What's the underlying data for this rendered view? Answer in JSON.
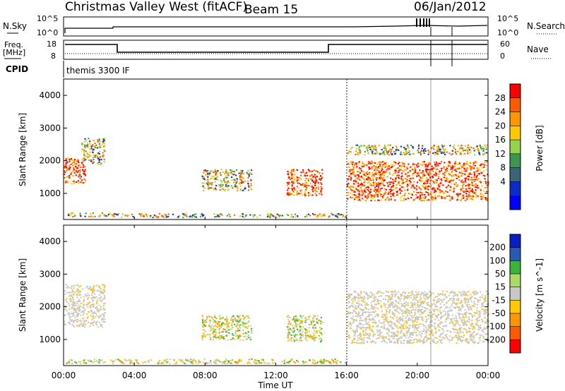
{
  "header": {
    "station": "Christmas Valley West (fitACF)",
    "beam": "Beam 15",
    "date": "06/Jan/2012"
  },
  "top_panels": {
    "nsky_label": "N.Sky",
    "nsearch_label": "N.Search",
    "left_tick_top": "10^5",
    "left_tick_bottom": "10^0",
    "right_tick_top": "10^5",
    "right_tick_bottom": "10^0",
    "freq_label": "Freq.",
    "freq_unit": "[MHz]",
    "freq_ticks": [
      "18",
      "8"
    ],
    "nave_label": "Nave",
    "nave_ticks": [
      "60",
      "0"
    ],
    "cpid_label": "CPID",
    "cpid_value": "themis 3300 IF"
  },
  "x_axis": {
    "label": "Time UT",
    "ticks": [
      "00:00",
      "04:00",
      "08:00",
      "12:00",
      "16:00",
      "20:00",
      "00:00"
    ]
  },
  "power_colorbar": {
    "label": "Power [dB]",
    "ticks": [
      "28",
      "24",
      "20",
      "16",
      "12",
      "8",
      "4"
    ],
    "colors": [
      "#ff0000",
      "#ff5a00",
      "#ff9600",
      "#ffc800",
      "#96d24b",
      "#3c9650",
      "#3c6478",
      "#0a2dc8",
      "#0000ff"
    ]
  },
  "velocity_colorbar": {
    "label": "Velocity [m s^-1]",
    "ticks": [
      "200",
      "100",
      "50",
      "15",
      "-15",
      "-50",
      "-100",
      "-200"
    ],
    "colors": [
      "#0a1ec8",
      "#285ab4",
      "#3cb43c",
      "#aadc64",
      "#c8c8c8",
      "#ffc800",
      "#ff9600",
      "#ff5a00",
      "#ff0000"
    ]
  },
  "chart_data": [
    {
      "type": "heatmap",
      "panel": "power",
      "ylabel": "Slant Range [km]",
      "xlabel": "",
      "x_range_hours": [
        0,
        24
      ],
      "ylim": [
        200,
        4500
      ],
      "yticks": [
        1000,
        2000,
        3000,
        4000
      ],
      "grid": false,
      "blobs": [
        {
          "t0": 0.0,
          "t1": 1.2,
          "r0": 1300,
          "r1": 2100,
          "level": "high"
        },
        {
          "t0": 1.0,
          "t1": 2.3,
          "r0": 1900,
          "r1": 2700,
          "level": "mid"
        },
        {
          "t0": 0.2,
          "t1": 3.0,
          "r0": 300,
          "r1": 420,
          "level": "mid"
        },
        {
          "t0": 7.8,
          "t1": 10.6,
          "r0": 1100,
          "r1": 1750,
          "level": "mid"
        },
        {
          "t0": 12.6,
          "t1": 14.6,
          "r0": 950,
          "r1": 1750,
          "level": "high"
        },
        {
          "t0": 16.0,
          "t1": 24.0,
          "r0": 800,
          "r1": 2000,
          "level": "high"
        },
        {
          "t0": 16.0,
          "t1": 24.0,
          "r0": 2200,
          "r1": 2500,
          "level": "mid"
        },
        {
          "t0": 3.0,
          "t1": 16.0,
          "r0": 280,
          "r1": 400,
          "level": "low"
        }
      ]
    },
    {
      "type": "heatmap",
      "panel": "velocity",
      "ylabel": "Slant Range [km]",
      "xlabel": "Time UT",
      "x_range_hours": [
        0,
        24
      ],
      "ylim": [
        200,
        4500
      ],
      "yticks": [
        1000,
        2000,
        3000,
        4000
      ],
      "grid": false,
      "blobs": [
        {
          "t0": 0.0,
          "t1": 2.3,
          "r0": 1400,
          "r1": 2700,
          "level": "ground"
        },
        {
          "t0": 7.8,
          "t1": 10.6,
          "r0": 1000,
          "r1": 1750,
          "level": "neg"
        },
        {
          "t0": 12.6,
          "t1": 14.6,
          "r0": 950,
          "r1": 1750,
          "level": "neg"
        },
        {
          "t0": 16.0,
          "t1": 24.0,
          "r0": 900,
          "r1": 2500,
          "level": "ground"
        },
        {
          "t0": 0.0,
          "t1": 16.0,
          "r0": 280,
          "r1": 420,
          "level": "neg"
        }
      ]
    }
  ]
}
